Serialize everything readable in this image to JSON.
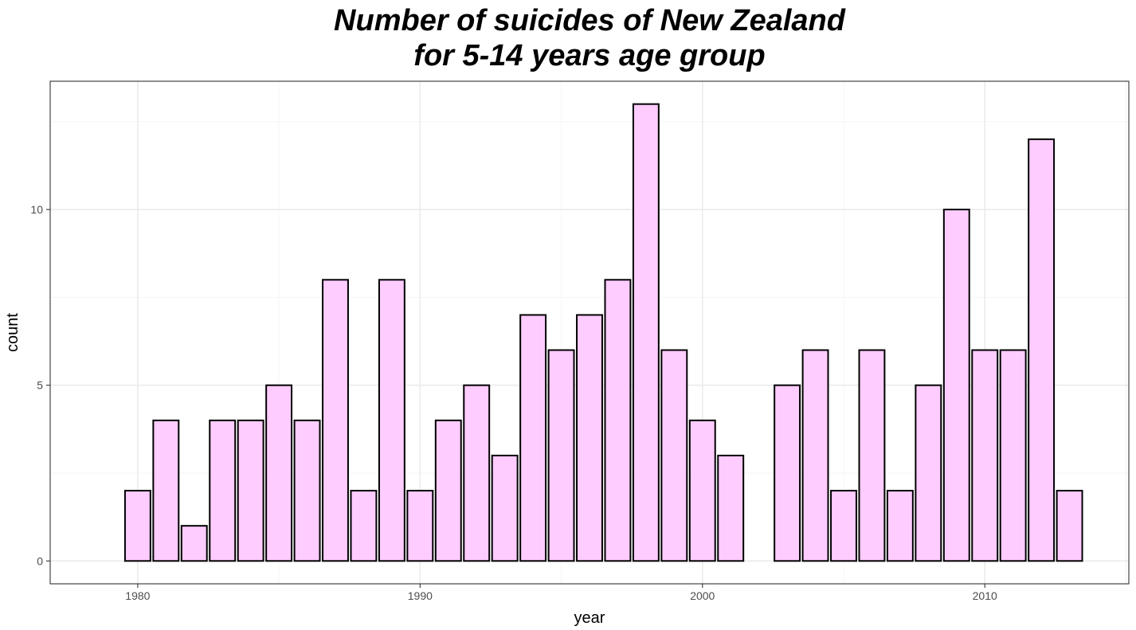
{
  "chart_data": {
    "type": "bar",
    "title_lines": [
      "Number of suicides of New Zealand",
      "for 5-14 years age group"
    ],
    "xlabel": "year",
    "ylabel": "count",
    "x": [
      1979,
      1980,
      1981,
      1982,
      1983,
      1984,
      1985,
      1986,
      1987,
      1988,
      1989,
      1990,
      1991,
      1992,
      1993,
      1994,
      1995,
      1996,
      1997,
      1998,
      1999,
      2000,
      2001,
      2002,
      2003,
      2004,
      2005,
      2006,
      2007,
      2008,
      2009,
      2010,
      2011,
      2012,
      2013
    ],
    "values": [
      0,
      2,
      4,
      1,
      4,
      4,
      5,
      4,
      8,
      2,
      8,
      2,
      4,
      5,
      3,
      7,
      6,
      7,
      8,
      13,
      6,
      4,
      3,
      0,
      5,
      6,
      2,
      6,
      2,
      5,
      10,
      6,
      6,
      12,
      2
    ],
    "xlim": [
      1976.9,
      2015.1
    ],
    "ylim": [
      -0.65,
      13.65
    ],
    "x_ticks": [
      1980,
      1990,
      2000,
      2010
    ],
    "y_ticks": [
      0,
      5,
      10
    ],
    "bar_fill": "#ffccff",
    "bar_outline": "#000000",
    "panel_border": "#333333",
    "grid_major": "#ebebeb",
    "grid_minor": "#f5f5f5",
    "grid": true,
    "legend": "none"
  }
}
